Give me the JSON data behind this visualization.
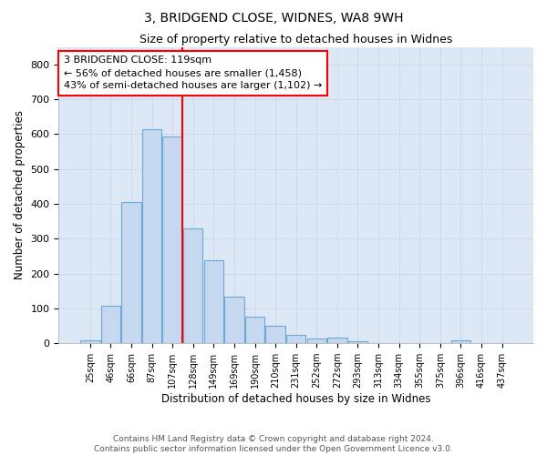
{
  "title1": "3, BRIDGEND CLOSE, WIDNES, WA8 9WH",
  "title2": "Size of property relative to detached houses in Widnes",
  "xlabel": "Distribution of detached houses by size in Widnes",
  "ylabel": "Number of detached properties",
  "categories": [
    "25sqm",
    "46sqm",
    "66sqm",
    "87sqm",
    "107sqm",
    "128sqm",
    "149sqm",
    "169sqm",
    "190sqm",
    "210sqm",
    "231sqm",
    "252sqm",
    "272sqm",
    "293sqm",
    "313sqm",
    "334sqm",
    "355sqm",
    "375sqm",
    "396sqm",
    "416sqm",
    "437sqm"
  ],
  "values": [
    8,
    107,
    405,
    615,
    593,
    330,
    237,
    133,
    77,
    51,
    25,
    13,
    17,
    5,
    0,
    0,
    0,
    0,
    8,
    0,
    0
  ],
  "bar_color": "#c5d8ef",
  "bar_edge_color": "#6aaad4",
  "vline_x": 4.5,
  "annotation_text": "3 BRIDGEND CLOSE: 119sqm\n← 56% of detached houses are smaller (1,458)\n43% of semi-detached houses are larger (1,102) →",
  "annotation_box_color": "white",
  "annotation_box_edge_color": "red",
  "vline_color": "red",
  "grid_color": "#d0d8e8",
  "background_color": "#dce8f5",
  "footer1": "Contains HM Land Registry data © Crown copyright and database right 2024.",
  "footer2": "Contains public sector information licensed under the Open Government Licence v3.0.",
  "ylim": [
    0,
    850
  ],
  "yticks": [
    0,
    100,
    200,
    300,
    400,
    500,
    600,
    700,
    800
  ]
}
